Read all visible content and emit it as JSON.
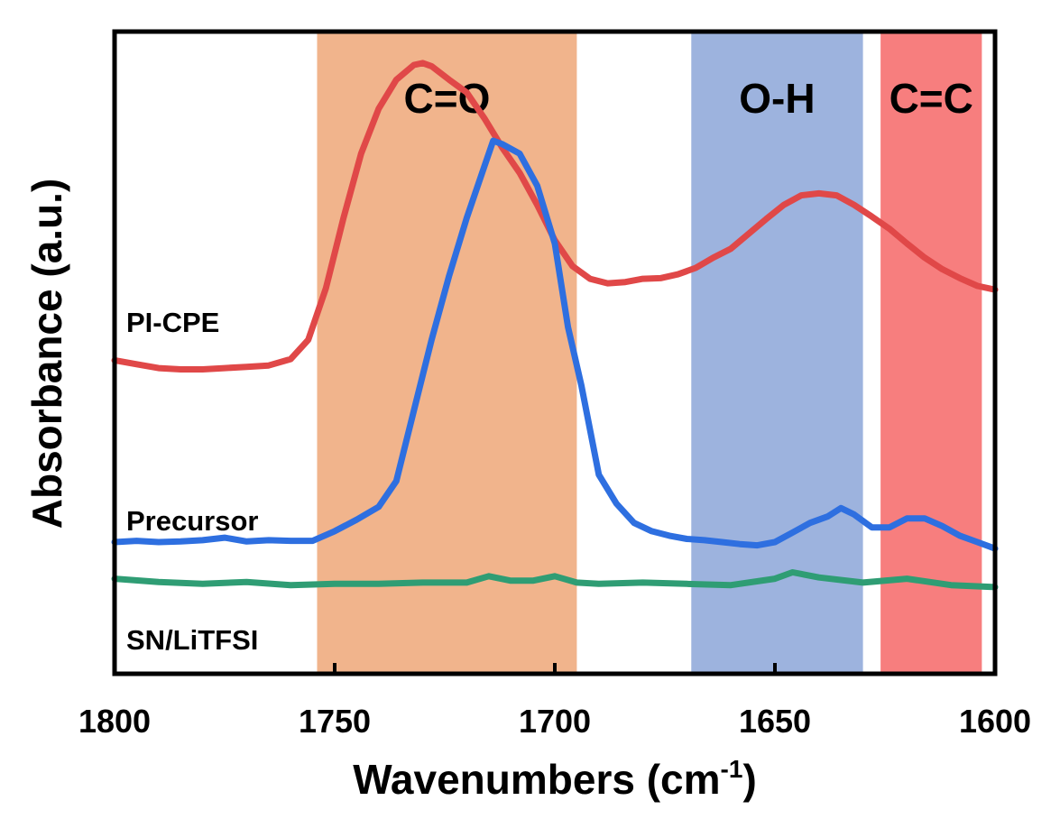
{
  "chart_data": {
    "type": "line",
    "title": "",
    "xlabel": "Wavenumbers (cm",
    "xlabel_superscript": "-1",
    "xlabel_close": ")",
    "ylabel": "Absorbance (a.u.)",
    "xlim": [
      1800,
      1600
    ],
    "x_reversed": true,
    "ylim": [
      0,
      1
    ],
    "x_ticks": [
      "1800",
      "1750",
      "1700",
      "1650",
      "1600"
    ],
    "x_tick_values": [
      1800,
      1750,
      1700,
      1650,
      1600
    ],
    "bands": [
      {
        "label": "C=O",
        "from": 1754,
        "to": 1695,
        "color": "#f1b48c"
      },
      {
        "label": "O-H",
        "from": 1669,
        "to": 1630,
        "color": "#9db3de"
      },
      {
        "label": "C=C",
        "from": 1626,
        "to": 1603,
        "color": "#f77e7e"
      }
    ],
    "series": [
      {
        "name": "PI-CPE",
        "color": "#e04848",
        "x": [
          1800,
          1795,
          1790,
          1785,
          1780,
          1775,
          1770,
          1765,
          1760,
          1756,
          1752,
          1748,
          1744,
          1740,
          1736,
          1732,
          1730,
          1728,
          1724,
          1720,
          1716,
          1712,
          1708,
          1704,
          1700,
          1696,
          1692,
          1688,
          1684,
          1680,
          1676,
          1672,
          1668,
          1664,
          1660,
          1656,
          1652,
          1648,
          1644,
          1640,
          1636,
          1632,
          1628,
          1624,
          1620,
          1616,
          1612,
          1608,
          1604,
          1600
        ],
        "y": [
          0.488,
          0.482,
          0.476,
          0.474,
          0.474,
          0.476,
          0.478,
          0.48,
          0.49,
          0.52,
          0.6,
          0.71,
          0.81,
          0.88,
          0.925,
          0.948,
          0.951,
          0.946,
          0.925,
          0.905,
          0.865,
          0.82,
          0.78,
          0.73,
          0.675,
          0.635,
          0.615,
          0.608,
          0.61,
          0.615,
          0.616,
          0.622,
          0.632,
          0.648,
          0.662,
          0.685,
          0.708,
          0.73,
          0.745,
          0.748,
          0.745,
          0.73,
          0.712,
          0.693,
          0.67,
          0.648,
          0.63,
          0.616,
          0.604,
          0.598
        ]
      },
      {
        "name": "Precursor",
        "color": "#2e6fe0",
        "x": [
          1800,
          1795,
          1790,
          1785,
          1780,
          1775,
          1770,
          1765,
          1760,
          1755,
          1750,
          1745,
          1740,
          1736,
          1732,
          1728,
          1724,
          1720,
          1716,
          1714,
          1712,
          1708,
          1704,
          1700,
          1697,
          1694,
          1690,
          1686,
          1682,
          1678,
          1674,
          1670,
          1666,
          1662,
          1658,
          1654,
          1650,
          1646,
          1642,
          1638,
          1635,
          1632,
          1628,
          1624,
          1620,
          1616,
          1612,
          1608,
          1604,
          1600
        ],
        "y": [
          0.205,
          0.207,
          0.205,
          0.206,
          0.208,
          0.212,
          0.206,
          0.208,
          0.207,
          0.207,
          0.222,
          0.24,
          0.26,
          0.3,
          0.41,
          0.52,
          0.62,
          0.71,
          0.79,
          0.83,
          0.825,
          0.81,
          0.76,
          0.67,
          0.54,
          0.45,
          0.31,
          0.265,
          0.235,
          0.222,
          0.215,
          0.21,
          0.208,
          0.205,
          0.202,
          0.2,
          0.205,
          0.22,
          0.235,
          0.245,
          0.258,
          0.248,
          0.228,
          0.228,
          0.242,
          0.242,
          0.23,
          0.215,
          0.205,
          0.195
        ]
      },
      {
        "name": "SN/LiTFSI",
        "color": "#2f9d74",
        "x": [
          1800,
          1790,
          1780,
          1770,
          1760,
          1750,
          1740,
          1730,
          1720,
          1715,
          1710,
          1705,
          1700,
          1695,
          1690,
          1680,
          1670,
          1660,
          1650,
          1646,
          1640,
          1630,
          1620,
          1610,
          1600
        ],
        "y": [
          0.148,
          0.143,
          0.14,
          0.143,
          0.138,
          0.14,
          0.14,
          0.142,
          0.142,
          0.152,
          0.145,
          0.145,
          0.152,
          0.142,
          0.14,
          0.142,
          0.14,
          0.138,
          0.148,
          0.158,
          0.15,
          0.142,
          0.148,
          0.138,
          0.135
        ]
      }
    ]
  }
}
